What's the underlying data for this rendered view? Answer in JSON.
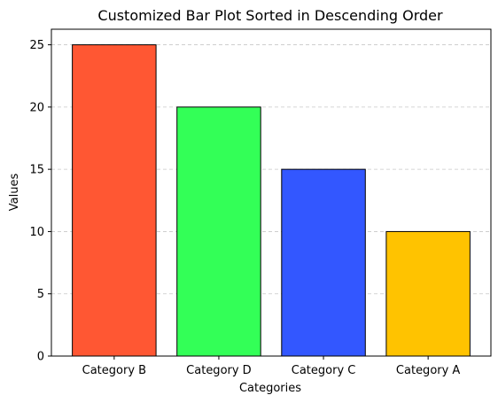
{
  "chart_data": {
    "type": "bar",
    "title": "Customized Bar Plot Sorted in Descending Order",
    "xlabel": "Categories",
    "ylabel": "Values",
    "categories": [
      "Category B",
      "Category D",
      "Category C",
      "Category A"
    ],
    "values": [
      25,
      20,
      15,
      10
    ],
    "colors": [
      "#ff5733",
      "#33ff57",
      "#3357ff",
      "#ffc300"
    ],
    "ylim": [
      0,
      26.25
    ],
    "yticks": [
      0,
      5,
      10,
      15,
      20,
      25
    ],
    "grid": "y-dashed",
    "legend": "none"
  }
}
